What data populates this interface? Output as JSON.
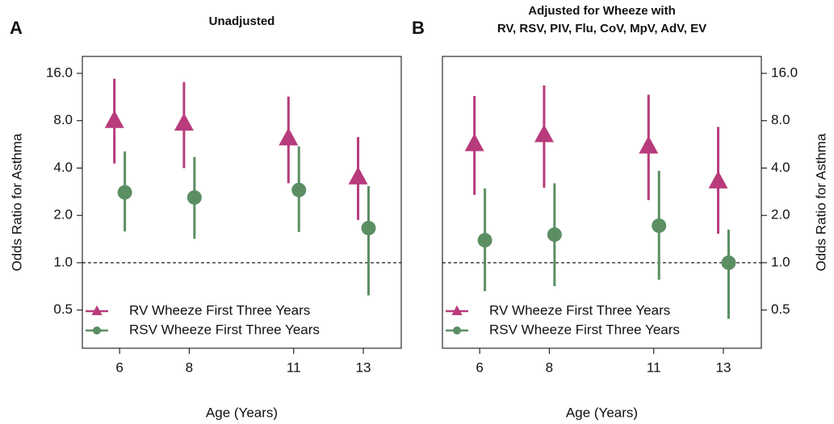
{
  "chart_data": [
    {
      "type": "errorbar",
      "panel_label": "A",
      "title": [
        "Unadjusted"
      ],
      "xlabel": "Age (Years)",
      "ylabel": "Odds Ratio for Asthma",
      "y_axis_side": "left",
      "log_scale": true,
      "legend": "bottom-left",
      "reference_line": 1,
      "xlim": [
        4.93,
        14.09
      ],
      "xticks": [
        6,
        8,
        11,
        13
      ],
      "ylim": [
        0.286,
        20.5
      ],
      "yticks": [
        {
          "value": 0.5,
          "label": "0.5"
        },
        {
          "value": 1,
          "label": "1.0"
        },
        {
          "value": 2,
          "label": "2.0"
        },
        {
          "value": 4,
          "label": "4.0"
        },
        {
          "value": 8,
          "label": "8.0"
        },
        {
          "value": 16,
          "label": "16.0"
        }
      ],
      "series": [
        {
          "name": "RV Wheeze First Three Years",
          "color": "#b83b7c",
          "marker": "triangle",
          "x": [
            5.85,
            7.85,
            10.85,
            12.85
          ],
          "values": [
            8.0,
            7.7,
            6.2,
            3.5
          ],
          "lower": [
            4.27,
            4.0,
            3.2,
            1.87
          ],
          "upper": [
            14.8,
            14.1,
            11.4,
            6.3
          ]
        },
        {
          "name": "RSV Wheeze First Three Years",
          "color": "#5b8f63",
          "marker": "circle",
          "x": [
            6.15,
            8.15,
            11.15,
            13.15
          ],
          "values": [
            2.8,
            2.6,
            2.9,
            1.66
          ],
          "lower": [
            1.58,
            1.42,
            1.57,
            0.62
          ],
          "upper": [
            5.1,
            4.7,
            5.5,
            3.07
          ]
        }
      ]
    },
    {
      "type": "errorbar",
      "panel_label": "B",
      "title": [
        "Adjusted for Wheeze with",
        "RV, RSV, PIV, Flu, CoV, MpV, AdV, EV"
      ],
      "xlabel": "Age (Years)",
      "ylabel": "Odds Ratio for Asthma",
      "y_axis_side": "right",
      "log_scale": true,
      "legend": "bottom-left",
      "reference_line": 1,
      "xlim": [
        4.93,
        14.09
      ],
      "xticks": [
        6,
        8,
        11,
        13
      ],
      "ylim": [
        0.286,
        20.5
      ],
      "yticks": [
        {
          "value": 0.5,
          "label": "0.5"
        },
        {
          "value": 1,
          "label": "1.0"
        },
        {
          "value": 2,
          "label": "2.0"
        },
        {
          "value": 4,
          "label": "4.0"
        },
        {
          "value": 8,
          "label": "8.0"
        },
        {
          "value": 16,
          "label": "16.0"
        }
      ],
      "series": [
        {
          "name": "RV Wheeze First Three Years",
          "color": "#b83b7c",
          "marker": "triangle",
          "x": [
            5.85,
            7.85,
            10.85,
            12.85
          ],
          "values": [
            5.7,
            6.5,
            5.5,
            3.3
          ],
          "lower": [
            2.7,
            3.0,
            2.5,
            1.53
          ],
          "upper": [
            11.5,
            13.4,
            11.7,
            7.3
          ]
        },
        {
          "name": "RSV Wheeze First Three Years",
          "color": "#5b8f63",
          "marker": "circle",
          "x": [
            6.15,
            8.15,
            11.15,
            13.15
          ],
          "values": [
            1.39,
            1.51,
            1.72,
            1.0
          ],
          "lower": [
            0.66,
            0.71,
            0.78,
            0.44
          ],
          "upper": [
            2.97,
            3.2,
            3.84,
            1.62
          ]
        }
      ]
    }
  ]
}
